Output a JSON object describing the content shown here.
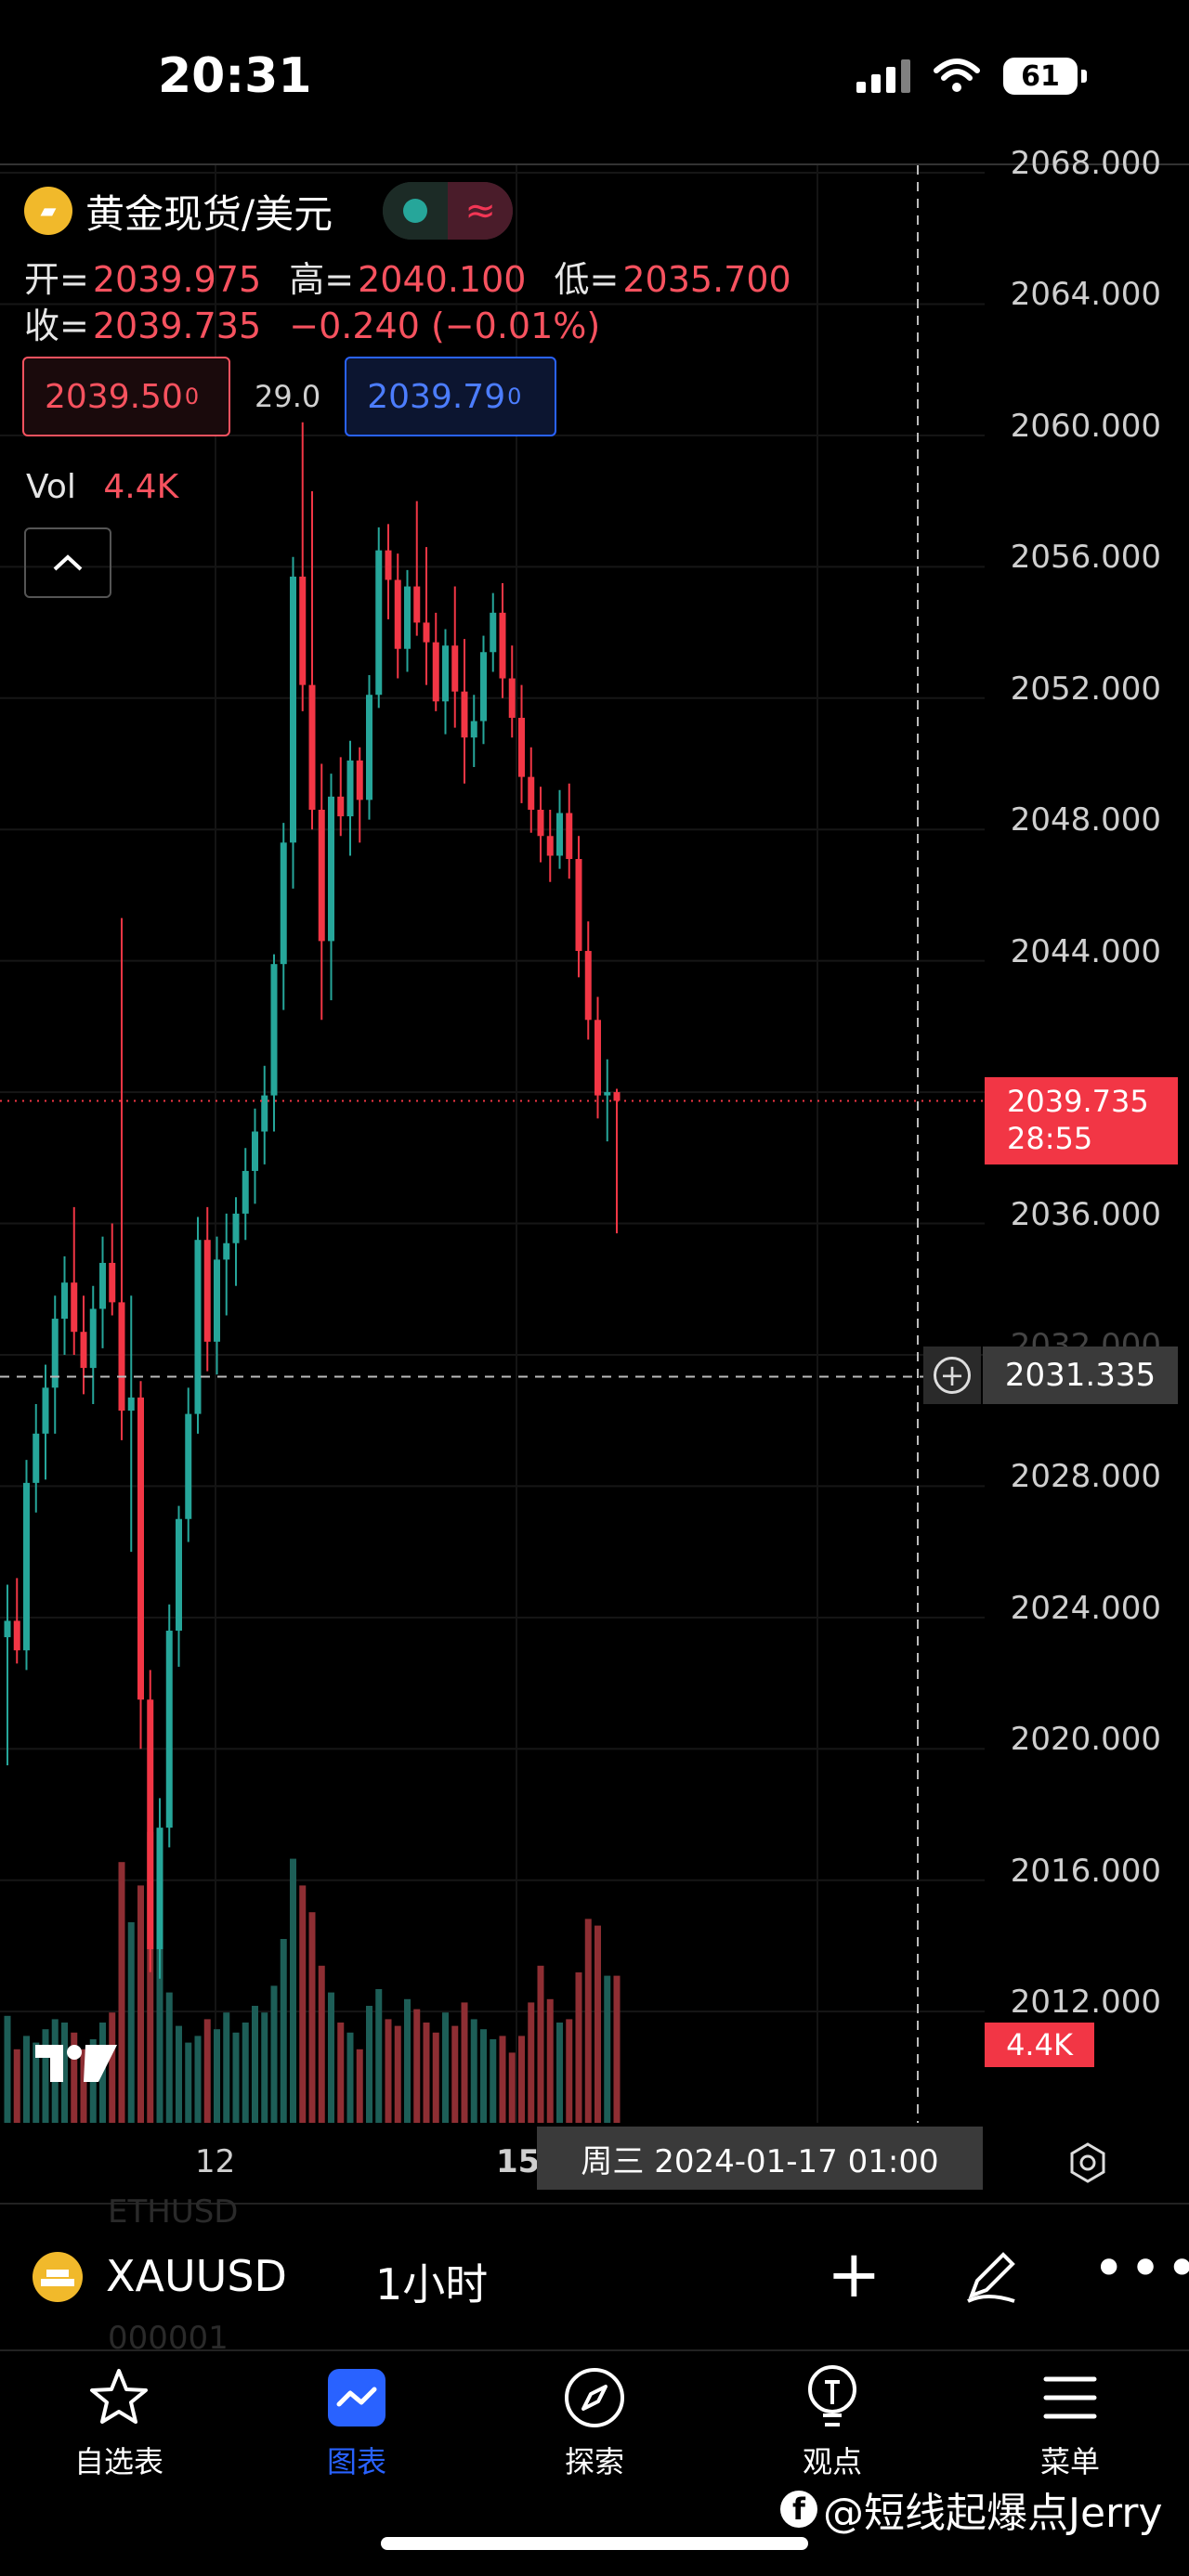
{
  "status_bar": {
    "time": "20:31",
    "battery": "61"
  },
  "legend": {
    "symbol_title": "黄金现货/美元",
    "open_label": "开=",
    "open": "2039.975",
    "high_label": "高=",
    "high": "2040.100",
    "low_label": "低=",
    "low": "2035.700",
    "close_label": "收=",
    "close": "2039.735",
    "change": "−0.240 (−0.01%)",
    "bid": "2039.50",
    "bid_sup": "0",
    "spread": "29.0",
    "ask": "2039.79",
    "ask_sup": "0",
    "vol_label": "Vol",
    "vol": "4.4K"
  },
  "price_axis": {
    "ticks": [
      "2068.000",
      "2064.000",
      "2060.000",
      "2056.000",
      "2052.000",
      "2048.000",
      "2044.000",
      "2036.000",
      "2032.000",
      "2028.000",
      "2024.000",
      "2020.000",
      "2016.000",
      "2012.000"
    ],
    "last_price": "2039.735",
    "countdown": "28:55",
    "crosshair_price": "2031.335",
    "volume_tag": "4.4K"
  },
  "time_axis": {
    "ticks": [
      "12",
      "15"
    ],
    "crosshair_time": "周三 2024-01-17   01:00"
  },
  "symbol_bar": {
    "ghost_top": "ETHUSD",
    "ghost_bottom": "000001",
    "symbol": "XAUUSD",
    "interval": "1小时"
  },
  "nav": {
    "items": [
      {
        "label": "自选表",
        "icon": "star-icon"
      },
      {
        "label": "图表",
        "icon": "chart-icon",
        "active": true
      },
      {
        "label": "探索",
        "icon": "compass-icon"
      },
      {
        "label": "观点",
        "icon": "lightbulb-icon"
      },
      {
        "label": "菜单",
        "icon": "menu-icon"
      }
    ]
  },
  "watermark": "@短线起爆点Jerry",
  "colors": {
    "up": "#26a69a",
    "down": "#f23645",
    "accent": "#2962ff",
    "background": "#000000"
  },
  "chart_data": {
    "type": "candlestick",
    "symbol": "XAUUSD",
    "interval": "1小时",
    "ylim": [
      2010,
      2069
    ],
    "candles": [
      [
        2023.4,
        2025.0,
        2019.5,
        2023.9
      ],
      [
        2023.9,
        2025.2,
        2022.6,
        2023.0
      ],
      [
        2023.0,
        2028.8,
        2022.4,
        2028.1
      ],
      [
        2028.1,
        2030.5,
        2027.2,
        2029.6
      ],
      [
        2029.6,
        2031.7,
        2028.2,
        2031.0
      ],
      [
        2031.0,
        2033.8,
        2029.6,
        2033.1
      ],
      [
        2033.1,
        2035.0,
        2032.0,
        2034.2
      ],
      [
        2034.2,
        2036.5,
        2032.0,
        2032.7
      ],
      [
        2032.7,
        2033.8,
        2030.8,
        2031.6
      ],
      [
        2031.6,
        2034.1,
        2030.5,
        2033.4
      ],
      [
        2033.4,
        2035.6,
        2032.2,
        2034.8
      ],
      [
        2034.8,
        2036.0,
        2033.2,
        2033.6
      ],
      [
        2033.6,
        2045.3,
        2029.4,
        2030.3
      ],
      [
        2030.3,
        2033.8,
        2026.0,
        2030.7
      ],
      [
        2030.7,
        2031.2,
        2020.0,
        2021.5
      ],
      [
        2021.5,
        2022.4,
        2013.2,
        2013.9
      ],
      [
        2013.9,
        2018.5,
        2013.0,
        2017.6
      ],
      [
        2017.6,
        2024.4,
        2017.0,
        2023.6
      ],
      [
        2023.6,
        2027.4,
        2022.5,
        2027.0
      ],
      [
        2027.0,
        2031.0,
        2026.3,
        2030.2
      ],
      [
        2030.2,
        2036.2,
        2029.6,
        2035.5
      ],
      [
        2035.5,
        2036.5,
        2031.5,
        2032.4
      ],
      [
        2032.4,
        2035.6,
        2031.4,
        2034.9
      ],
      [
        2034.9,
        2036.3,
        2033.2,
        2035.4
      ],
      [
        2035.4,
        2036.8,
        2034.1,
        2036.3
      ],
      [
        2036.3,
        2038.3,
        2035.5,
        2037.6
      ],
      [
        2037.6,
        2039.5,
        2036.6,
        2038.8
      ],
      [
        2038.8,
        2040.8,
        2037.8,
        2039.9
      ],
      [
        2039.9,
        2044.2,
        2038.8,
        2043.9
      ],
      [
        2043.9,
        2048.2,
        2042.5,
        2047.6
      ],
      [
        2047.6,
        2056.3,
        2046.2,
        2055.7
      ],
      [
        2055.7,
        2060.4,
        2051.6,
        2052.4
      ],
      [
        2052.4,
        2058.3,
        2048.0,
        2048.6
      ],
      [
        2048.6,
        2050.0,
        2042.2,
        2044.6
      ],
      [
        2044.6,
        2049.7,
        2042.8,
        2049.0
      ],
      [
        2049.0,
        2050.2,
        2047.8,
        2048.4
      ],
      [
        2048.4,
        2050.7,
        2047.2,
        2050.1
      ],
      [
        2050.1,
        2050.5,
        2047.6,
        2048.9
      ],
      [
        2048.9,
        2052.7,
        2048.3,
        2052.1
      ],
      [
        2052.1,
        2057.2,
        2051.7,
        2056.5
      ],
      [
        2056.5,
        2057.3,
        2054.4,
        2055.6
      ],
      [
        2055.6,
        2056.4,
        2052.6,
        2053.5
      ],
      [
        2053.5,
        2055.9,
        2052.8,
        2055.4
      ],
      [
        2055.4,
        2058.0,
        2053.9,
        2054.3
      ],
      [
        2054.3,
        2056.6,
        2052.4,
        2053.7
      ],
      [
        2053.7,
        2054.6,
        2051.6,
        2051.9
      ],
      [
        2051.9,
        2054.1,
        2050.9,
        2053.6
      ],
      [
        2053.6,
        2055.4,
        2051.1,
        2052.2
      ],
      [
        2052.2,
        2053.8,
        2049.4,
        2050.8
      ],
      [
        2050.8,
        2052.1,
        2049.9,
        2051.3
      ],
      [
        2051.3,
        2053.9,
        2050.6,
        2053.4
      ],
      [
        2053.4,
        2055.2,
        2052.8,
        2054.6
      ],
      [
        2054.6,
        2055.5,
        2052.0,
        2052.6
      ],
      [
        2052.6,
        2053.6,
        2050.8,
        2051.4
      ],
      [
        2051.4,
        2052.4,
        2048.8,
        2049.6
      ],
      [
        2049.6,
        2050.5,
        2047.9,
        2048.6
      ],
      [
        2048.6,
        2049.3,
        2047.0,
        2047.8
      ],
      [
        2047.8,
        2048.6,
        2046.4,
        2047.2
      ],
      [
        2047.2,
        2049.2,
        2046.8,
        2048.5
      ],
      [
        2048.5,
        2049.4,
        2046.5,
        2047.1
      ],
      [
        2047.1,
        2047.8,
        2043.5,
        2044.3
      ],
      [
        2044.3,
        2045.2,
        2041.6,
        2042.2
      ],
      [
        2042.2,
        2042.9,
        2039.2,
        2039.9
      ],
      [
        2039.9,
        2041.0,
        2038.5,
        2040.0
      ],
      [
        2040.0,
        2040.1,
        2035.7,
        2039.735
      ]
    ],
    "volume_max_note": "4.4K",
    "volume": [
      0.32,
      0.22,
      0.26,
      0.24,
      0.28,
      0.31,
      0.3,
      0.27,
      0.22,
      0.25,
      0.3,
      0.33,
      0.78,
      0.6,
      0.71,
      0.87,
      0.65,
      0.39,
      0.29,
      0.24,
      0.26,
      0.31,
      0.28,
      0.33,
      0.27,
      0.3,
      0.35,
      0.33,
      0.41,
      0.55,
      0.79,
      0.71,
      0.63,
      0.47,
      0.39,
      0.3,
      0.27,
      0.22,
      0.35,
      0.4,
      0.31,
      0.29,
      0.37,
      0.34,
      0.3,
      0.27,
      0.33,
      0.29,
      0.36,
      0.31,
      0.28,
      0.25,
      0.26,
      0.21,
      0.26,
      0.36,
      0.47,
      0.37,
      0.3,
      0.31,
      0.45,
      0.61,
      0.59,
      0.44,
      0.44
    ]
  }
}
